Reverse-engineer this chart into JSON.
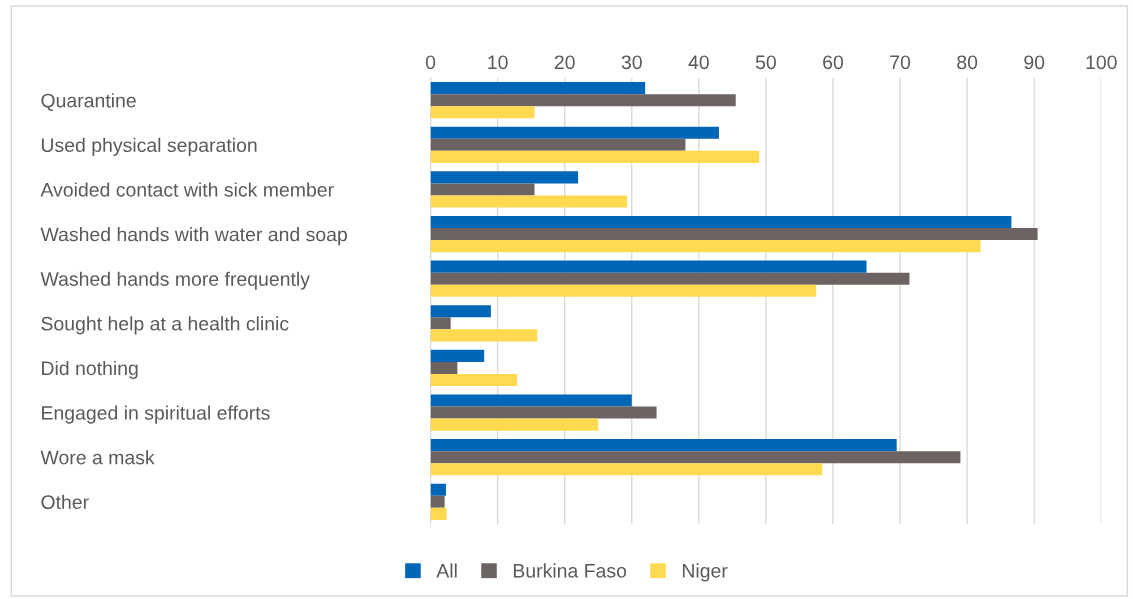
{
  "chart_data": {
    "type": "bar",
    "orientation": "horizontal",
    "categories": [
      "Quarantine",
      "Used physical separation",
      "Avoided contact with sick member",
      "Washed hands with water and soap",
      "Washed hands more frequently",
      "Sought help at a health clinic",
      "Did nothing",
      "Engaged in spiritual efforts",
      "Wore a mask",
      "Other"
    ],
    "series": [
      {
        "name": "All",
        "color": "#0066b8",
        "values": [
          32,
          43,
          22,
          86.6,
          65,
          9,
          8,
          30,
          69.5,
          2.3
        ]
      },
      {
        "name": "Burkina Faso",
        "color": "#6b6463",
        "values": [
          45.5,
          38,
          15.5,
          90.5,
          71.4,
          3,
          4,
          33.7,
          79,
          2.1
        ]
      },
      {
        "name": "Niger",
        "color": "#ffd94f",
        "values": [
          15.5,
          49,
          29.3,
          82,
          57.5,
          15.9,
          12.9,
          25,
          58.4,
          2.4
        ]
      }
    ],
    "xlim": [
      0,
      100
    ],
    "xticks": [
      0,
      10,
      20,
      30,
      40,
      50,
      60,
      70,
      80,
      90,
      100
    ],
    "grid": "x",
    "legend": "bottom"
  }
}
